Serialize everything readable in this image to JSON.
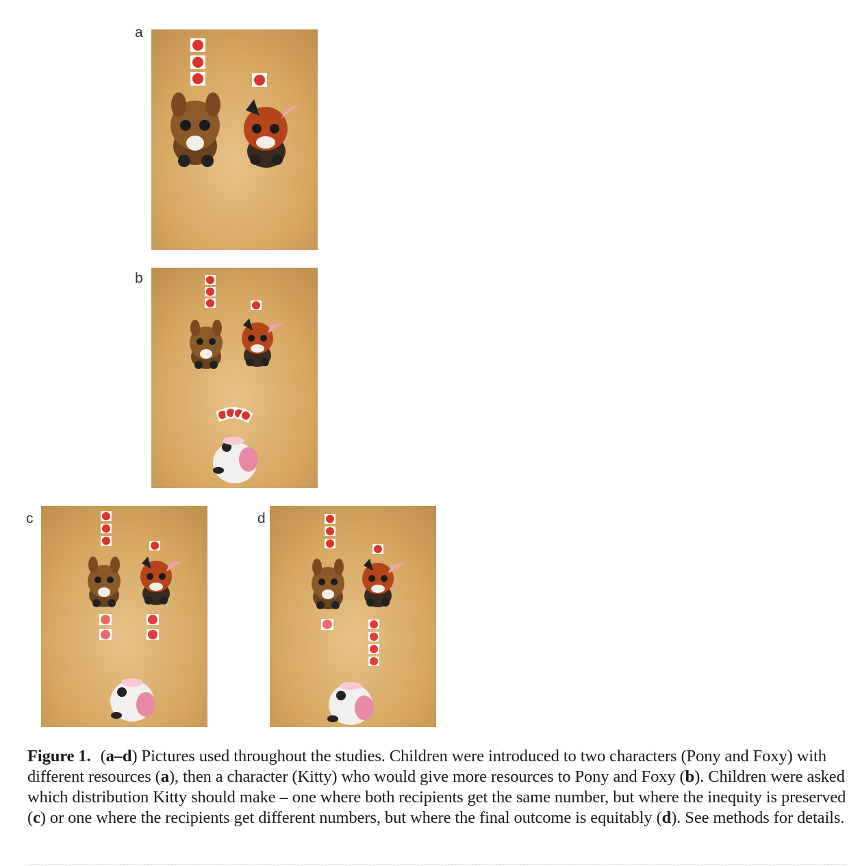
{
  "figure": {
    "panels": [
      {
        "id": "a",
        "label": "a"
      },
      {
        "id": "b",
        "label": "b"
      },
      {
        "id": "c",
        "label": "c"
      },
      {
        "id": "d",
        "label": "d"
      }
    ],
    "caption": {
      "label": "Figure 1.",
      "range_open": "(",
      "range_bold": "a–d",
      "intro": ") Pictures used throughout the studies. Children were introduced to two characters (Pony and Foxy) with different resources (",
      "ref_a": "a",
      "mid1": "), then a character (Kitty) who would give more resources to Pony and Foxy (",
      "ref_b": "b",
      "mid2": "). Children were asked which distribution Kitty should make – one where both recipients get the same number, but where the inequity is preserved (",
      "ref_c": "c",
      "mid3": ") or one where the recipients get different numbers, but where the final outcome is equitably (",
      "ref_d": "d",
      "end": "). See methods for details."
    }
  },
  "colors": {
    "table": "#d8ab66",
    "sticker": "#d9342f",
    "pony": "#8a5a2b",
    "foxy": "#b5461c",
    "kitty": "#f2f0ee"
  }
}
